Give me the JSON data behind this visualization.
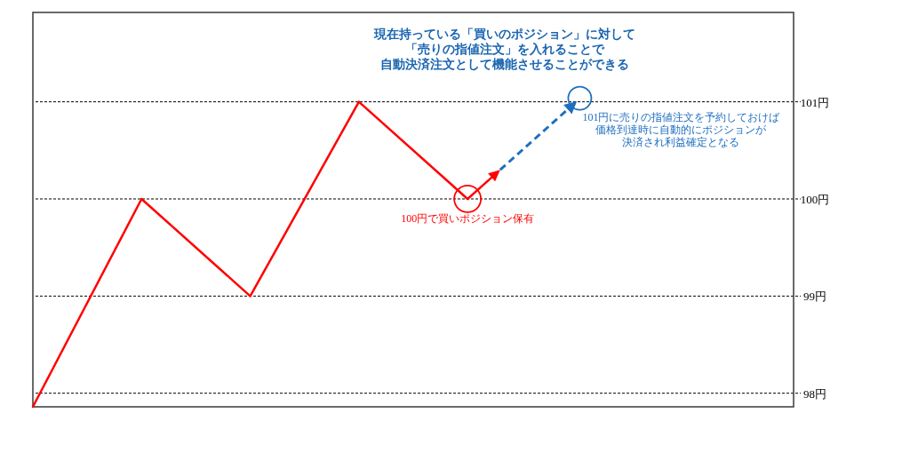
{
  "chart_data": {
    "type": "line",
    "title": "現在持っている「買いのポジション」に対して",
    "subtitle": "「売りの指値注文」を入れることで",
    "categories": [
      null,
      null,
      null,
      null,
      null,
      null
    ],
    "series": [
      {
        "color": "#ff0000",
        "values": [
          97.86,
          100,
          99,
          101,
          100,
          null
        ]
      },
      {
        "type": "line",
        "color": "#1f6fbf",
        "line_style": "dashed",
        "values": [
          null,
          null,
          null,
          null,
          100,
          101
        ]
      }
    ],
    "ylim": [
      97.86,
      101.92
    ],
    "yticks": [
      {
        "value": 98,
        "label": "98円"
      },
      {
        "value": 99,
        "label": "99円"
      },
      {
        "value": 100,
        "label": "100円"
      },
      {
        "value": 101,
        "label": "101円"
      }
    ],
    "grid": "y",
    "tick_labels": "y",
    "annotations": [
      "自動決済注文として機能させることができる",
      {
        "text": "100円で買いポジション保有",
        "y": 100
      },
      "101円に売りの指値注文を予約しておけば",
      "価格到達時に自動的にポジションが",
      "決済され利益確定となる"
    ]
  }
}
